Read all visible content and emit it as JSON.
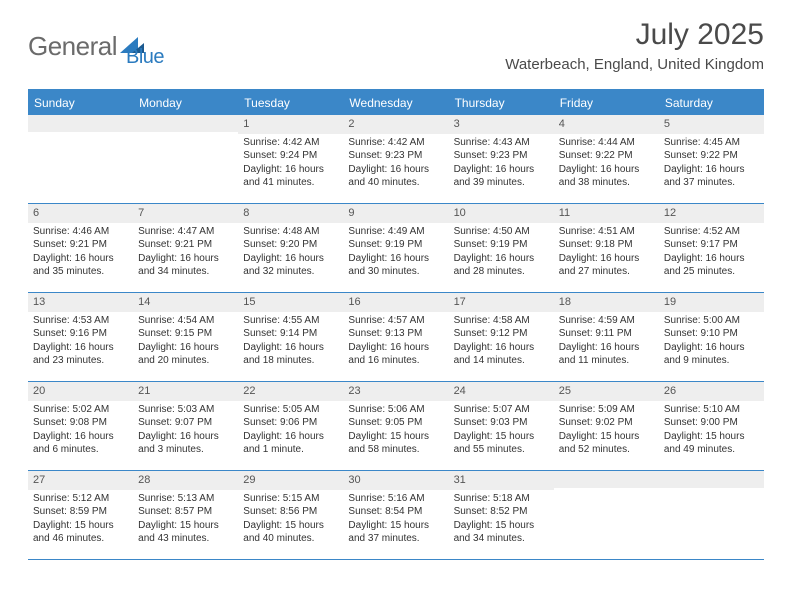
{
  "brand": {
    "text1": "General",
    "text2": "Blue"
  },
  "title": "July 2025",
  "location": "Waterbeach, England, United Kingdom",
  "colors": {
    "header_bg": "#3b87c8",
    "header_text": "#ffffff",
    "daynum_bg": "#eeeeee",
    "text": "#333333",
    "title_text": "#4a4a4a",
    "logo_gray": "#6b6b6b",
    "logo_blue": "#2b7bbf"
  },
  "day_names": [
    "Sunday",
    "Monday",
    "Tuesday",
    "Wednesday",
    "Thursday",
    "Friday",
    "Saturday"
  ],
  "weeks": [
    [
      {
        "n": "",
        "lines": []
      },
      {
        "n": "",
        "lines": []
      },
      {
        "n": "1",
        "lines": [
          "Sunrise: 4:42 AM",
          "Sunset: 9:24 PM",
          "Daylight: 16 hours",
          "and 41 minutes."
        ]
      },
      {
        "n": "2",
        "lines": [
          "Sunrise: 4:42 AM",
          "Sunset: 9:23 PM",
          "Daylight: 16 hours",
          "and 40 minutes."
        ]
      },
      {
        "n": "3",
        "lines": [
          "Sunrise: 4:43 AM",
          "Sunset: 9:23 PM",
          "Daylight: 16 hours",
          "and 39 minutes."
        ]
      },
      {
        "n": "4",
        "lines": [
          "Sunrise: 4:44 AM",
          "Sunset: 9:22 PM",
          "Daylight: 16 hours",
          "and 38 minutes."
        ]
      },
      {
        "n": "5",
        "lines": [
          "Sunrise: 4:45 AM",
          "Sunset: 9:22 PM",
          "Daylight: 16 hours",
          "and 37 minutes."
        ]
      }
    ],
    [
      {
        "n": "6",
        "lines": [
          "Sunrise: 4:46 AM",
          "Sunset: 9:21 PM",
          "Daylight: 16 hours",
          "and 35 minutes."
        ]
      },
      {
        "n": "7",
        "lines": [
          "Sunrise: 4:47 AM",
          "Sunset: 9:21 PM",
          "Daylight: 16 hours",
          "and 34 minutes."
        ]
      },
      {
        "n": "8",
        "lines": [
          "Sunrise: 4:48 AM",
          "Sunset: 9:20 PM",
          "Daylight: 16 hours",
          "and 32 minutes."
        ]
      },
      {
        "n": "9",
        "lines": [
          "Sunrise: 4:49 AM",
          "Sunset: 9:19 PM",
          "Daylight: 16 hours",
          "and 30 minutes."
        ]
      },
      {
        "n": "10",
        "lines": [
          "Sunrise: 4:50 AM",
          "Sunset: 9:19 PM",
          "Daylight: 16 hours",
          "and 28 minutes."
        ]
      },
      {
        "n": "11",
        "lines": [
          "Sunrise: 4:51 AM",
          "Sunset: 9:18 PM",
          "Daylight: 16 hours",
          "and 27 minutes."
        ]
      },
      {
        "n": "12",
        "lines": [
          "Sunrise: 4:52 AM",
          "Sunset: 9:17 PM",
          "Daylight: 16 hours",
          "and 25 minutes."
        ]
      }
    ],
    [
      {
        "n": "13",
        "lines": [
          "Sunrise: 4:53 AM",
          "Sunset: 9:16 PM",
          "Daylight: 16 hours",
          "and 23 minutes."
        ]
      },
      {
        "n": "14",
        "lines": [
          "Sunrise: 4:54 AM",
          "Sunset: 9:15 PM",
          "Daylight: 16 hours",
          "and 20 minutes."
        ]
      },
      {
        "n": "15",
        "lines": [
          "Sunrise: 4:55 AM",
          "Sunset: 9:14 PM",
          "Daylight: 16 hours",
          "and 18 minutes."
        ]
      },
      {
        "n": "16",
        "lines": [
          "Sunrise: 4:57 AM",
          "Sunset: 9:13 PM",
          "Daylight: 16 hours",
          "and 16 minutes."
        ]
      },
      {
        "n": "17",
        "lines": [
          "Sunrise: 4:58 AM",
          "Sunset: 9:12 PM",
          "Daylight: 16 hours",
          "and 14 minutes."
        ]
      },
      {
        "n": "18",
        "lines": [
          "Sunrise: 4:59 AM",
          "Sunset: 9:11 PM",
          "Daylight: 16 hours",
          "and 11 minutes."
        ]
      },
      {
        "n": "19",
        "lines": [
          "Sunrise: 5:00 AM",
          "Sunset: 9:10 PM",
          "Daylight: 16 hours",
          "and 9 minutes."
        ]
      }
    ],
    [
      {
        "n": "20",
        "lines": [
          "Sunrise: 5:02 AM",
          "Sunset: 9:08 PM",
          "Daylight: 16 hours",
          "and 6 minutes."
        ]
      },
      {
        "n": "21",
        "lines": [
          "Sunrise: 5:03 AM",
          "Sunset: 9:07 PM",
          "Daylight: 16 hours",
          "and 3 minutes."
        ]
      },
      {
        "n": "22",
        "lines": [
          "Sunrise: 5:05 AM",
          "Sunset: 9:06 PM",
          "Daylight: 16 hours",
          "and 1 minute."
        ]
      },
      {
        "n": "23",
        "lines": [
          "Sunrise: 5:06 AM",
          "Sunset: 9:05 PM",
          "Daylight: 15 hours",
          "and 58 minutes."
        ]
      },
      {
        "n": "24",
        "lines": [
          "Sunrise: 5:07 AM",
          "Sunset: 9:03 PM",
          "Daylight: 15 hours",
          "and 55 minutes."
        ]
      },
      {
        "n": "25",
        "lines": [
          "Sunrise: 5:09 AM",
          "Sunset: 9:02 PM",
          "Daylight: 15 hours",
          "and 52 minutes."
        ]
      },
      {
        "n": "26",
        "lines": [
          "Sunrise: 5:10 AM",
          "Sunset: 9:00 PM",
          "Daylight: 15 hours",
          "and 49 minutes."
        ]
      }
    ],
    [
      {
        "n": "27",
        "lines": [
          "Sunrise: 5:12 AM",
          "Sunset: 8:59 PM",
          "Daylight: 15 hours",
          "and 46 minutes."
        ]
      },
      {
        "n": "28",
        "lines": [
          "Sunrise: 5:13 AM",
          "Sunset: 8:57 PM",
          "Daylight: 15 hours",
          "and 43 minutes."
        ]
      },
      {
        "n": "29",
        "lines": [
          "Sunrise: 5:15 AM",
          "Sunset: 8:56 PM",
          "Daylight: 15 hours",
          "and 40 minutes."
        ]
      },
      {
        "n": "30",
        "lines": [
          "Sunrise: 5:16 AM",
          "Sunset: 8:54 PM",
          "Daylight: 15 hours",
          "and 37 minutes."
        ]
      },
      {
        "n": "31",
        "lines": [
          "Sunrise: 5:18 AM",
          "Sunset: 8:52 PM",
          "Daylight: 15 hours",
          "and 34 minutes."
        ]
      },
      {
        "n": "",
        "lines": []
      },
      {
        "n": "",
        "lines": []
      }
    ]
  ]
}
